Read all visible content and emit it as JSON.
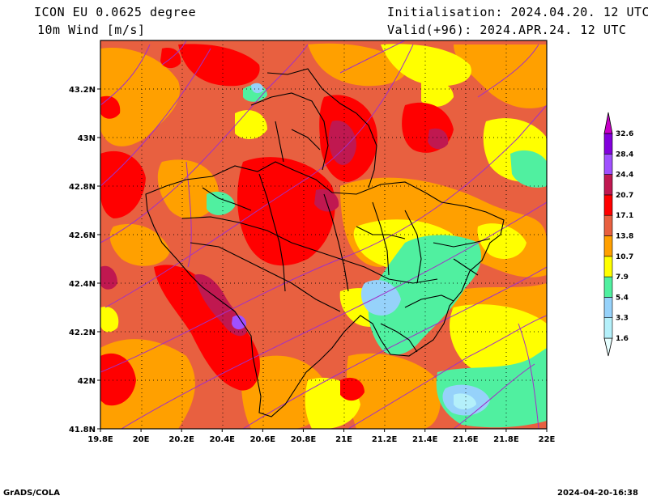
{
  "header": {
    "model": "ICON EU 0.0625 degree",
    "variable": "10m Wind [m/s]",
    "init": "Initialisation: 2024.04.20. 12 UTC",
    "valid": "Valid(+96): 2024.APR.24. 12 UTC"
  },
  "axes": {
    "x_ticks": [
      "19.8E",
      "20E",
      "20.2E",
      "20.4E",
      "20.6E",
      "20.8E",
      "21E",
      "21.2E",
      "21.4E",
      "21.6E",
      "21.8E",
      "22E"
    ],
    "y_ticks": [
      "43.2N",
      "43N",
      "42.8N",
      "42.6N",
      "42.4N",
      "42.2N",
      "42N",
      "41.8N"
    ],
    "x_range": [
      19.8,
      22.0
    ],
    "y_range": [
      41.8,
      43.4
    ]
  },
  "legend": {
    "levels": [
      "1.6",
      "3.3",
      "5.4",
      "7.9",
      "10.7",
      "13.8",
      "17.1",
      "20.7",
      "24.4",
      "28.4",
      "32.6"
    ],
    "colors": [
      "#e6ffff",
      "#b4f0fa",
      "#96d2fa",
      "#50f0a0",
      "#ffff00",
      "#ffa000",
      "#e86040",
      "#ff0000",
      "#c01850",
      "#a050ff",
      "#8200dc",
      "#c800c8"
    ]
  },
  "footer": {
    "left": "GrADS/COLA",
    "right": "2024-04-20-16:38"
  }
}
